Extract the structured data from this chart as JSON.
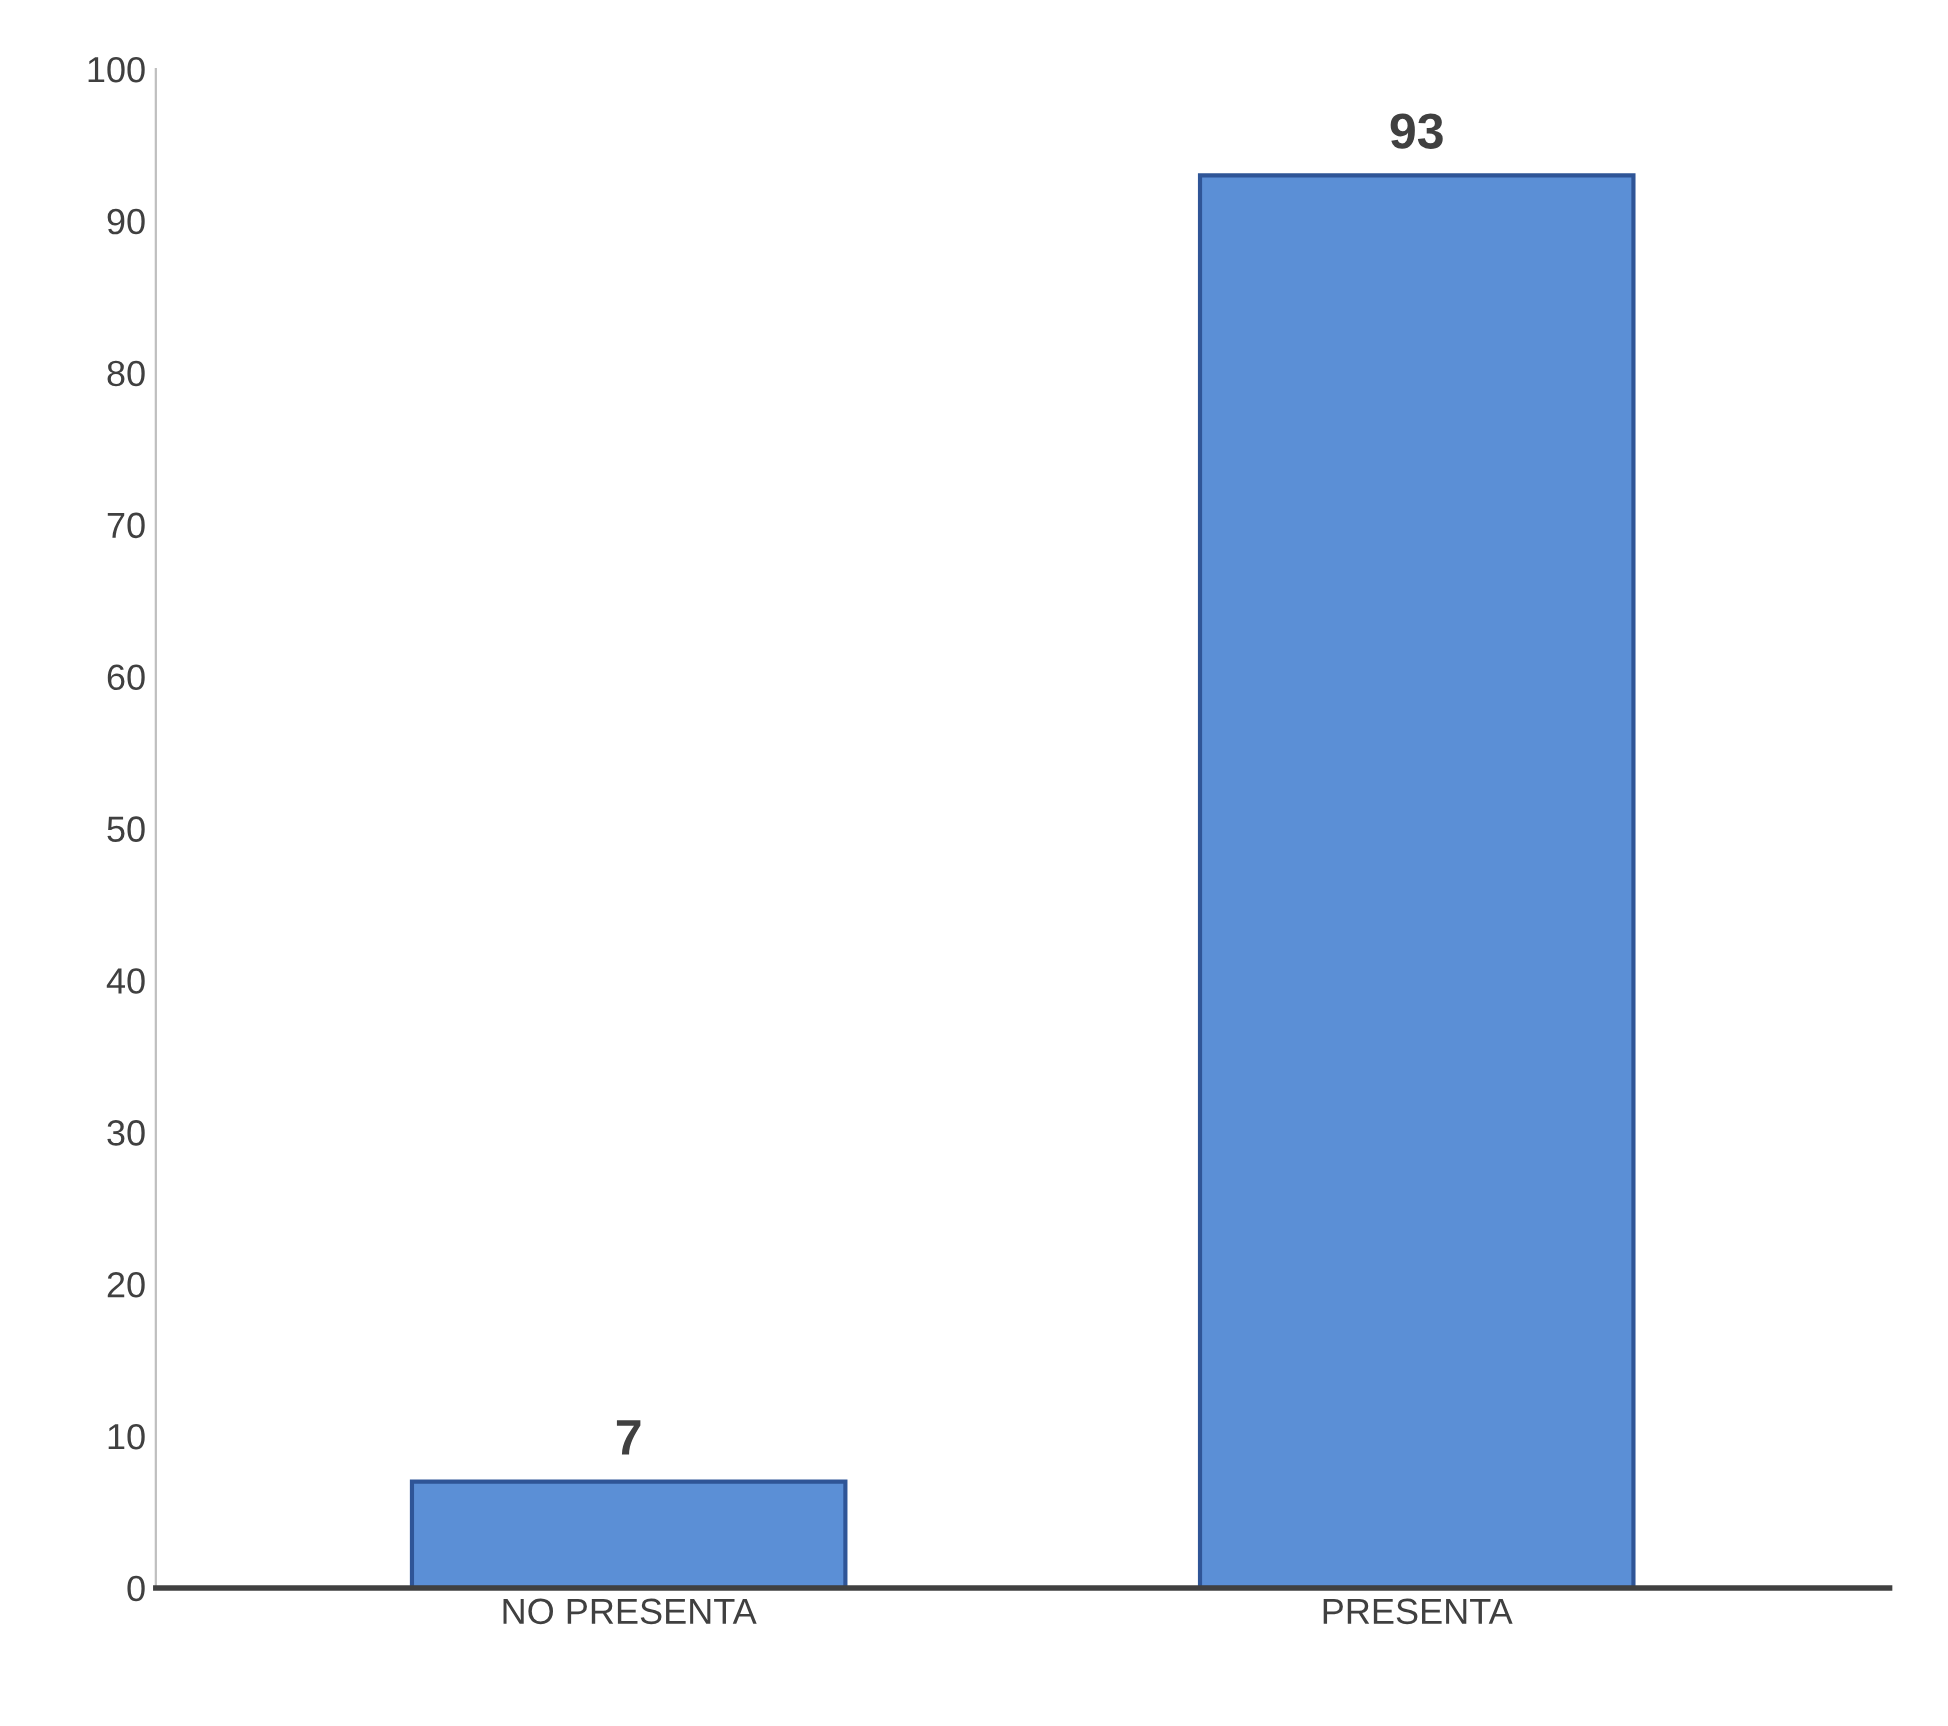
{
  "chart_data": {
    "type": "bar",
    "categories": [
      "NO PRESENTA",
      "PRESENTA"
    ],
    "values": [
      7,
      93
    ],
    "color": "#5b8fd6",
    "ylim": [
      0,
      100
    ],
    "yticks": [
      0,
      10,
      20,
      30,
      40,
      50,
      60,
      70,
      80,
      90,
      100
    ],
    "data_labels": true,
    "grid": false,
    "legend": false
  }
}
